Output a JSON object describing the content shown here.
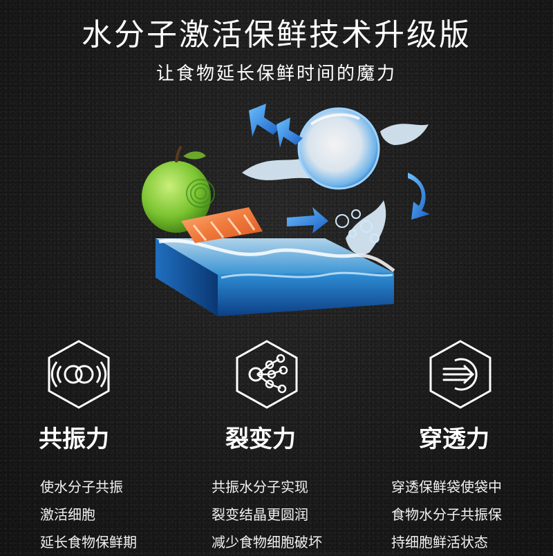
{
  "header": {
    "title": "水分子激活保鲜技术升级版",
    "subtitle": "让食物延长保鲜时间的魔力"
  },
  "features": [
    {
      "icon": "resonance-rings-icon",
      "title": "共振力",
      "lines": [
        "使水分子共振",
        "激活细胞",
        "延长食物保鲜期"
      ]
    },
    {
      "icon": "molecule-split-icon",
      "title": "裂变力",
      "lines": [
        "共振水分子实现",
        "裂变结晶更圆润",
        "减少食物细胞破坏"
      ]
    },
    {
      "icon": "penetrate-arrow-icon",
      "title": "穿透力",
      "lines": [
        "穿透保鲜袋使袋中",
        "食物水分子共振保",
        "持细胞鲜活状态"
      ]
    }
  ],
  "colors": {
    "background": "#1b1b1b",
    "water": "#2f8fd6",
    "apple": "#7bc431",
    "salmon": "#f07a3c"
  }
}
